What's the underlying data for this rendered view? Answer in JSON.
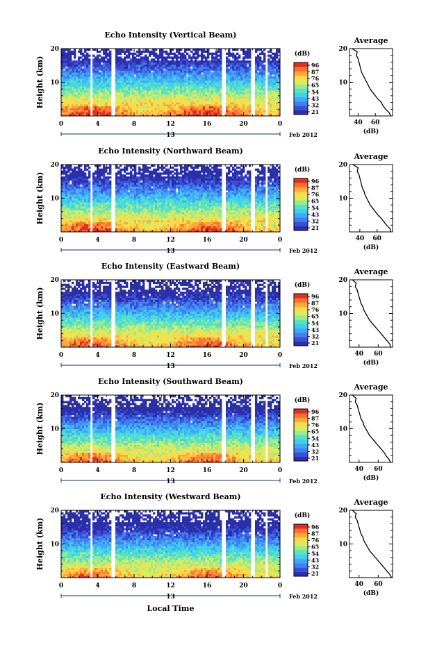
{
  "chart_data": {
    "type": "heatmap",
    "colormap": [
      "#2b2fa8",
      "#3a4fd6",
      "#3f7ff0",
      "#42a8f5",
      "#3fd0f0",
      "#57e2c0",
      "#9ee890",
      "#d9ec5a",
      "#ffd84a",
      "#ffa93b",
      "#ff6f2f",
      "#e03024"
    ],
    "colorbar": {
      "unit_label": "(dB)",
      "ticks": [
        "96",
        "87",
        "76",
        "65",
        "54",
        "43",
        "32",
        "21"
      ]
    },
    "x_axis": {
      "ticks": [
        "0",
        "4",
        "8",
        "12",
        "16",
        "20",
        "0"
      ],
      "date_tick": "13",
      "date_suffix": "Feb 2012",
      "xlabel": "Local Time"
    },
    "ylabel": "Height (km)",
    "y_ticks": [
      "20",
      "10"
    ],
    "ylim": [
      0,
      20
    ],
    "xlim": [
      0,
      24
    ],
    "gaps_hours": [
      [
        3.1,
        3.5
      ],
      [
        5.6,
        6.0
      ],
      [
        17.7,
        18.1
      ],
      [
        20.8,
        21.2
      ],
      [
        22.3,
        22.6
      ]
    ],
    "profile_heights_km": [
      0,
      1,
      2,
      3,
      4,
      5,
      6,
      7,
      8,
      9,
      10,
      11,
      12,
      13,
      14,
      15,
      16,
      17,
      18,
      19,
      20
    ],
    "panels": [
      {
        "title": "Echo Intensity (Vertical Beam)",
        "profile_title": "Average",
        "profile_xlabel": "(dB)",
        "profile_ticks": [
          "40",
          "60"
        ],
        "profile_xlim": [
          30,
          80
        ],
        "profile_db": [
          78,
          76,
          72,
          69,
          67,
          63,
          60,
          57,
          54,
          52,
          50,
          48,
          46,
          44,
          43,
          42,
          41,
          40,
          38,
          39,
          33
        ]
      },
      {
        "title": "Echo Intensity (Northward Beam)",
        "profile_title": "Average",
        "profile_xlabel": "(dB)",
        "profile_ticks": [
          "40",
          "60"
        ],
        "profile_xlim": [
          28,
          78
        ],
        "profile_db": [
          76,
          75,
          71,
          68,
          65,
          61,
          58,
          55,
          52,
          50,
          48,
          46,
          45,
          43,
          42,
          41,
          40,
          39,
          37,
          38,
          32
        ]
      },
      {
        "title": "Echo Intensity (Eastward Beam)",
        "profile_title": "Average",
        "profile_xlabel": "(dB)",
        "profile_ticks": [
          "40",
          "60"
        ],
        "profile_xlim": [
          30,
          75
        ],
        "profile_db": [
          73,
          72,
          69,
          66,
          63,
          60,
          57,
          54,
          51,
          49,
          47,
          45,
          44,
          42,
          41,
          40,
          39,
          38,
          36,
          37,
          33
        ]
      },
      {
        "title": "Echo Intensity (Southward Beam)",
        "profile_title": "Average",
        "profile_xlabel": "(dB)",
        "profile_ticks": [
          "40",
          "60"
        ],
        "profile_xlim": [
          30,
          75
        ],
        "profile_db": [
          73,
          71,
          68,
          66,
          63,
          60,
          57,
          54,
          51,
          49,
          47,
          45,
          44,
          42,
          41,
          40,
          39,
          38,
          36,
          37,
          33
        ]
      },
      {
        "title": "Echo Intensity (Westward Beam)",
        "profile_title": "Average",
        "profile_xlabel": "(dB)",
        "profile_ticks": [
          "40",
          "60"
        ],
        "profile_xlim": [
          30,
          75
        ],
        "profile_db": [
          74,
          72,
          69,
          66,
          63,
          60,
          57,
          54,
          51,
          49,
          47,
          45,
          44,
          42,
          41,
          40,
          39,
          38,
          36,
          37,
          33
        ]
      }
    ]
  }
}
